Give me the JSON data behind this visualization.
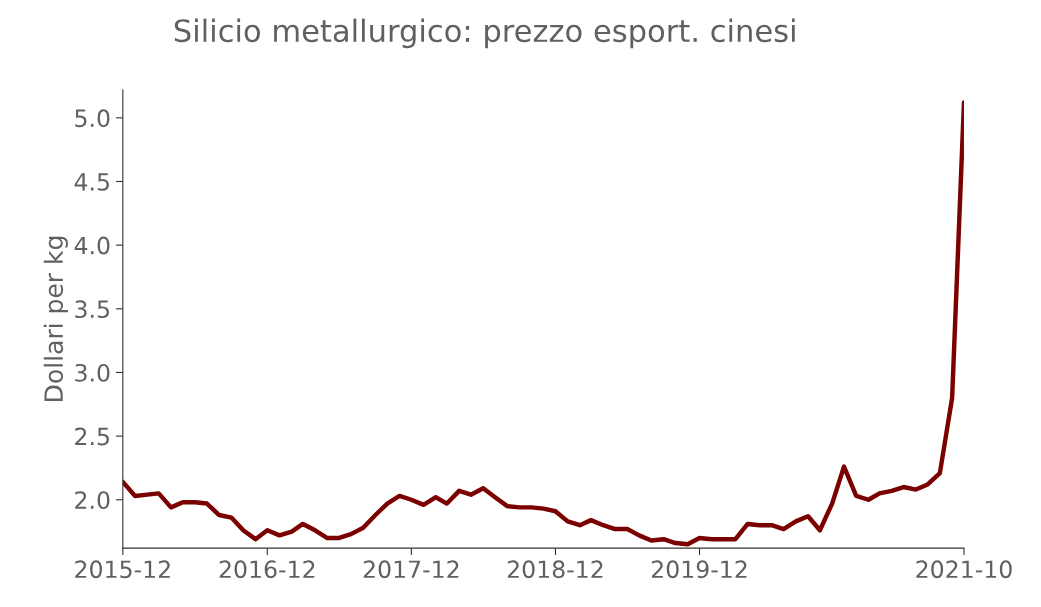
{
  "chart_data": {
    "type": "line",
    "title": "Silicio metallurgico: prezzo esport. cinesi",
    "ylabel": "Dollari per kg",
    "x": [
      "2015-12",
      "2016-01",
      "2016-02",
      "2016-03",
      "2016-04",
      "2016-05",
      "2016-06",
      "2016-07",
      "2016-08",
      "2016-09",
      "2016-10",
      "2016-11",
      "2016-12",
      "2017-01",
      "2017-02",
      "2017-03",
      "2017-04",
      "2017-05",
      "2017-06",
      "2017-07",
      "2017-08",
      "2017-09",
      "2017-10",
      "2017-11",
      "2017-12",
      "2018-01",
      "2018-02",
      "2018-03",
      "2018-04",
      "2018-05",
      "2018-06",
      "2018-07",
      "2018-08",
      "2018-09",
      "2018-10",
      "2018-11",
      "2018-12",
      "2019-01",
      "2019-02",
      "2019-03",
      "2019-04",
      "2019-05",
      "2019-06",
      "2019-07",
      "2019-08",
      "2019-09",
      "2019-10",
      "2019-11",
      "2019-12",
      "2020-01",
      "2020-02",
      "2020-03",
      "2020-04",
      "2020-05",
      "2020-06",
      "2020-07",
      "2020-08",
      "2020-09",
      "2020-10",
      "2020-11",
      "2020-12",
      "2021-01",
      "2021-02",
      "2021-03",
      "2021-04",
      "2021-05",
      "2021-06",
      "2021-07",
      "2021-08",
      "2021-09",
      "2021-10"
    ],
    "series": [
      {
        "color": "#7b0000",
        "values": [
          2.14,
          2.03,
          2.04,
          2.05,
          1.94,
          1.98,
          1.98,
          1.97,
          1.88,
          1.86,
          1.76,
          1.69,
          1.76,
          1.72,
          1.75,
          1.81,
          1.76,
          1.7,
          1.7,
          1.73,
          1.78,
          1.88,
          1.97,
          2.03,
          2.0,
          1.96,
          2.02,
          1.97,
          2.07,
          2.04,
          2.09,
          2.02,
          1.95,
          1.94,
          1.94,
          1.93,
          1.91,
          1.83,
          1.8,
          1.84,
          1.8,
          1.77,
          1.77,
          1.72,
          1.68,
          1.69,
          1.66,
          1.65,
          1.7,
          1.69,
          1.69,
          1.69,
          1.81,
          1.8,
          1.8,
          1.77,
          1.83,
          1.87,
          1.76,
          1.97,
          2.26,
          2.03,
          2.0,
          2.05,
          2.07,
          2.1,
          2.08,
          2.12,
          2.21,
          2.8,
          5.12
        ]
      }
    ],
    "xlim": [
      "2015-12",
      "2021-10"
    ],
    "xticks": [
      "2015-12",
      "2016-12",
      "2017-12",
      "2018-12",
      "2019-12",
      "2021-10"
    ],
    "ylim": [
      1.62,
      5.22
    ],
    "yticks": [
      {
        "value": 2,
        "label": "2.0"
      },
      {
        "value": 2.5,
        "label": "2.5"
      },
      {
        "value": 3,
        "label": "3.0"
      },
      {
        "value": 3.5,
        "label": "3.5"
      },
      {
        "value": 4,
        "label": "4.0"
      },
      {
        "value": 4.5,
        "label": "4.5"
      },
      {
        "value": 5,
        "label": "5.0"
      }
    ],
    "grid": false,
    "legend": false
  }
}
